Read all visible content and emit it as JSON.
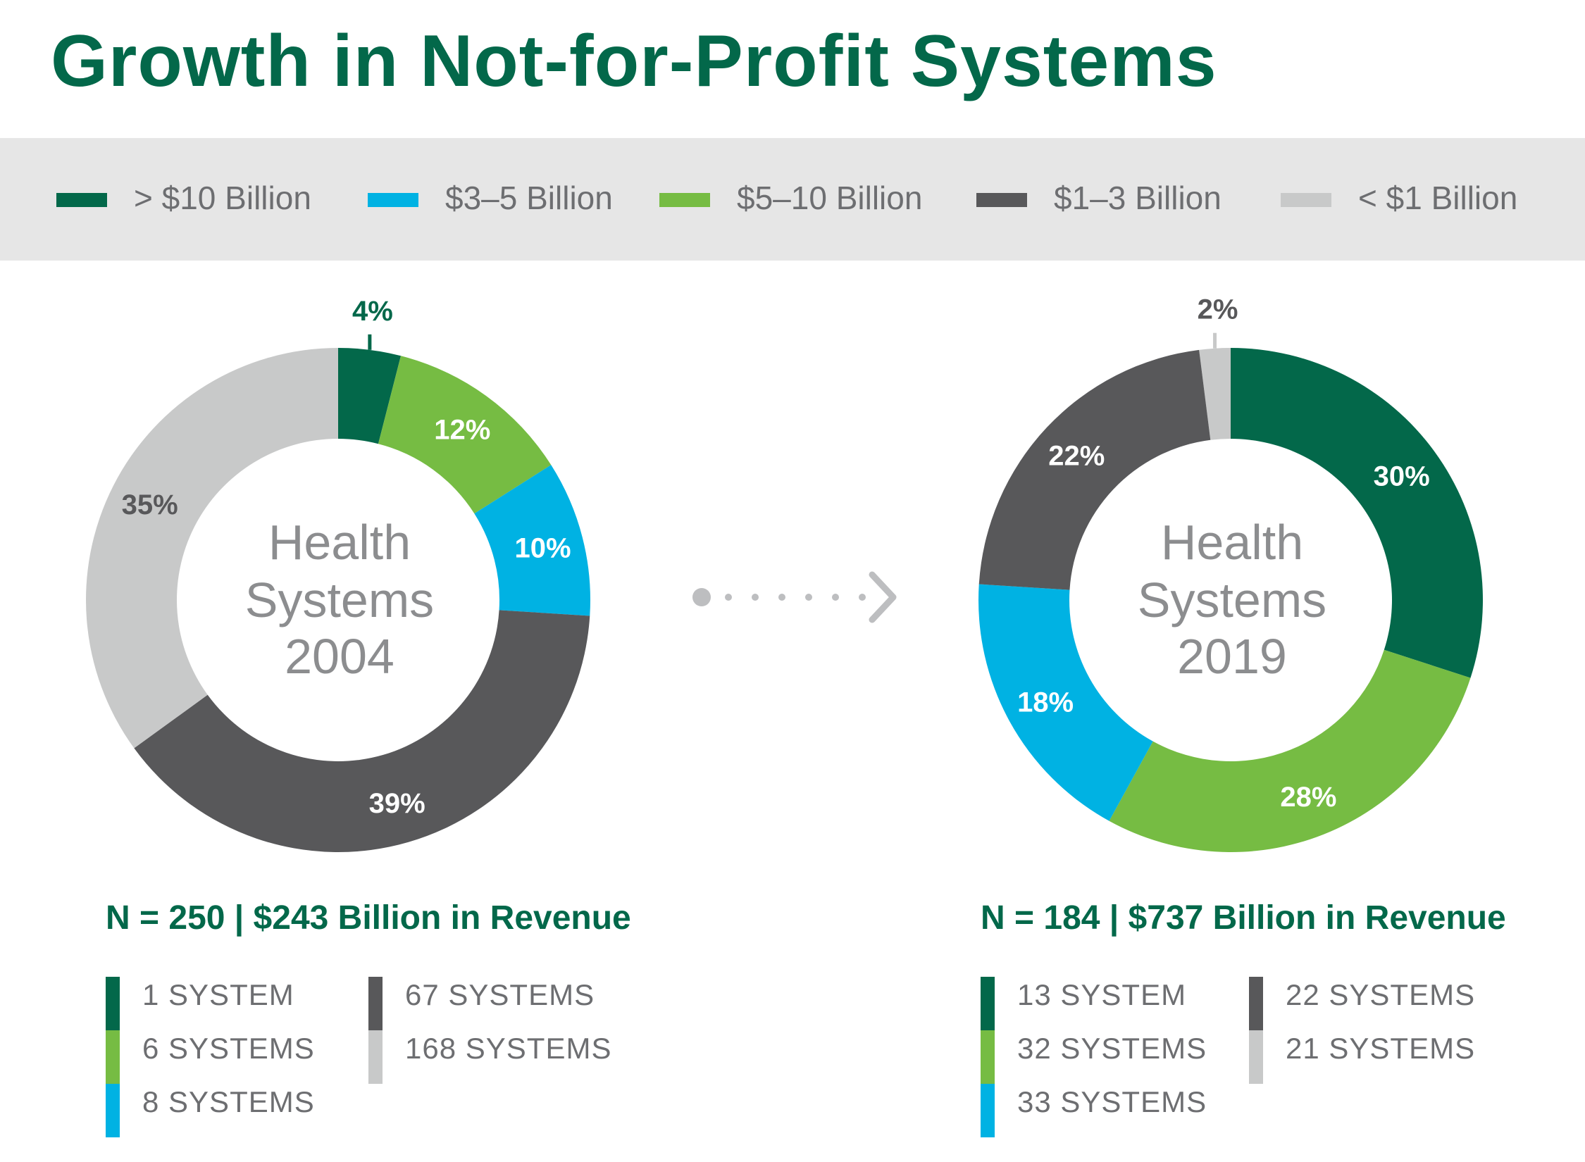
{
  "title": "Growth in Not-for-Profit Systems",
  "colors": {
    "gt10": "#03684A",
    "b3_5": "#00B2E3",
    "b5_10": "#76BC43",
    "b1_3": "#58585A",
    "lt1": "#C8C9C9",
    "title": "#03684A",
    "label_gray": "#6D6E71"
  },
  "legend": [
    {
      "label": "> $10 Billion",
      "color": "#03684A"
    },
    {
      "label": "$3–5 Billion",
      "color": "#00B2E3"
    },
    {
      "label": "$5–10 Billion",
      "color": "#76BC43"
    },
    {
      "label": "$1–3 Billion",
      "color": "#58585A"
    },
    {
      "label": "< $1 Billion",
      "color": "#C8C9C9"
    }
  ],
  "arrow_icon": "dotted-arrow-right-icon",
  "chart_data": [
    {
      "type": "pie",
      "variant": "donut",
      "center_label": [
        "Health",
        "Systems",
        "2004"
      ],
      "segments": [
        {
          "category": "> $10 Billion",
          "value": 4,
          "label": "4%",
          "color": "#03684A"
        },
        {
          "category": "$5–10 Billion",
          "value": 12,
          "label": "12%",
          "color": "#76BC43"
        },
        {
          "category": "$3–5 Billion",
          "value": 10,
          "label": "10%",
          "color": "#00B2E3"
        },
        {
          "category": "$1–3 Billion",
          "value": 39,
          "label": "39%",
          "color": "#58585A"
        },
        {
          "category": "< $1 Billion",
          "value": 35,
          "label": "35%",
          "color": "#C8C9C9"
        }
      ],
      "summary": "N = 250 | $243 Billion in Revenue",
      "counts": [
        {
          "label": "1  SYSTEM",
          "color": "#03684A"
        },
        {
          "label": "6  SYSTEMS",
          "color": "#76BC43"
        },
        {
          "label": "8  SYSTEMS",
          "color": "#00B2E3"
        },
        {
          "label": "67  SYSTEMS",
          "color": "#58585A"
        },
        {
          "label": "168  SYSTEMS",
          "color": "#C8C9C9"
        }
      ]
    },
    {
      "type": "pie",
      "variant": "donut",
      "center_label": [
        "Health",
        "Systems",
        "2019"
      ],
      "segments": [
        {
          "category": "> $10 Billion",
          "value": 30,
          "label": "30%",
          "color": "#03684A"
        },
        {
          "category": "$5–10 Billion",
          "value": 28,
          "label": "28%",
          "color": "#76BC43"
        },
        {
          "category": "$3–5 Billion",
          "value": 18,
          "label": "18%",
          "color": "#00B2E3"
        },
        {
          "category": "$1–3 Billion",
          "value": 22,
          "label": "22%",
          "color": "#58585A"
        },
        {
          "category": "< $1 Billion",
          "value": 2,
          "label": "2%",
          "color": "#C8C9C9"
        }
      ],
      "summary": "N = 184 | $737 Billion in Revenue",
      "counts": [
        {
          "label": "13  SYSTEM",
          "color": "#03684A"
        },
        {
          "label": "32  SYSTEMS",
          "color": "#76BC43"
        },
        {
          "label": "33 SYSTEMS",
          "color": "#00B2E3"
        },
        {
          "label": "22  SYSTEMS",
          "color": "#58585A"
        },
        {
          "label": "21  SYSTEMS",
          "color": "#C8C9C9"
        }
      ]
    }
  ]
}
